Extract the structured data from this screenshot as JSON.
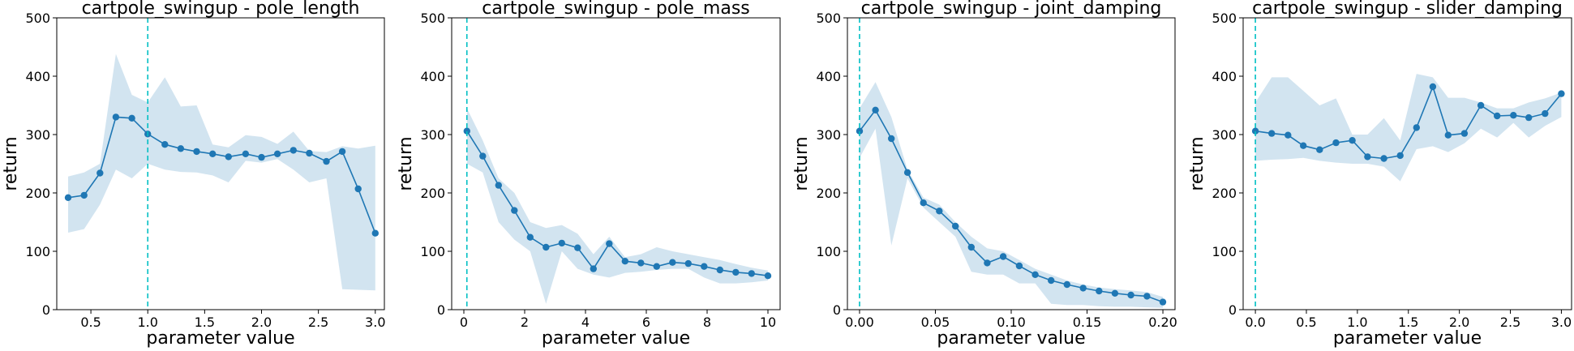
{
  "chart_data": [
    {
      "type": "line",
      "title": "cartpole_swingup - pole_length",
      "xlabel": "parameter value",
      "ylabel": "return",
      "xlim": [
        0.2,
        3.08
      ],
      "ylim": [
        0,
        500
      ],
      "xticks": [
        0.5,
        1.0,
        1.5,
        2.0,
        2.5,
        3.0
      ],
      "xtick_labels": [
        "0.5",
        "1.0",
        "1.5",
        "2.0",
        "2.5",
        "3.0"
      ],
      "yticks": [
        0,
        100,
        200,
        300,
        400,
        500
      ],
      "ytick_labels": [
        "0",
        "100",
        "200",
        "300",
        "400",
        "500"
      ],
      "vline": 1.0,
      "x": [
        0.3,
        0.44,
        0.58,
        0.72,
        0.86,
        1.0,
        1.15,
        1.29,
        1.43,
        1.57,
        1.71,
        1.86,
        2.0,
        2.14,
        2.28,
        2.42,
        2.57,
        2.71,
        2.85,
        3.0
      ],
      "y": [
        192,
        196,
        234,
        330,
        328,
        301,
        283,
        276,
        271,
        267,
        262,
        267,
        261,
        267,
        273,
        268,
        254,
        271,
        207,
        131
      ],
      "lower": [
        132,
        138,
        180,
        240,
        225,
        250,
        240,
        236,
        235,
        230,
        218,
        255,
        252,
        258,
        240,
        218,
        225,
        35,
        34,
        33
      ],
      "upper": [
        228,
        235,
        250,
        438,
        368,
        355,
        398,
        348,
        350,
        283,
        278,
        299,
        296,
        284,
        305,
        272,
        270,
        280,
        276,
        281
      ]
    },
    {
      "type": "line",
      "title": "cartpole_swingup - pole_mass",
      "xlabel": "parameter value",
      "ylabel": "return",
      "xlim": [
        -0.4,
        10.4
      ],
      "ylim": [
        0,
        500
      ],
      "xticks": [
        0,
        2,
        4,
        6,
        8,
        10
      ],
      "xtick_labels": [
        "0",
        "2",
        "4",
        "6",
        "8",
        "10"
      ],
      "yticks": [
        0,
        100,
        200,
        300,
        400,
        500
      ],
      "ytick_labels": [
        "0",
        "100",
        "200",
        "300",
        "400",
        "500"
      ],
      "vline": 0.1,
      "x": [
        0.1,
        0.62,
        1.14,
        1.66,
        2.18,
        2.7,
        3.22,
        3.74,
        4.26,
        4.78,
        5.3,
        5.82,
        6.34,
        6.86,
        7.38,
        7.9,
        8.42,
        8.94,
        9.46,
        10.0
      ],
      "y": [
        306,
        263,
        213,
        170,
        124,
        107,
        114,
        106,
        70,
        113,
        83,
        80,
        74,
        81,
        79,
        74,
        68,
        64,
        62,
        58
      ],
      "lower": [
        250,
        235,
        150,
        120,
        100,
        10,
        100,
        70,
        60,
        55,
        63,
        65,
        68,
        70,
        70,
        55,
        45,
        45,
        47,
        50
      ],
      "upper": [
        345,
        290,
        225,
        200,
        150,
        140,
        145,
        130,
        95,
        125,
        90,
        95,
        107,
        100,
        95,
        90,
        85,
        78,
        72,
        67
      ]
    },
    {
      "type": "line",
      "title": "cartpole_swingup - joint_damping",
      "xlabel": "parameter value",
      "ylabel": "return",
      "xlim": [
        -0.008,
        0.208
      ],
      "ylim": [
        0,
        500
      ],
      "xticks": [
        0.0,
        0.05,
        0.1,
        0.15,
        0.2
      ],
      "xtick_labels": [
        "0.00",
        "0.05",
        "0.10",
        "0.15",
        "0.20"
      ],
      "yticks": [
        0,
        100,
        200,
        300,
        400,
        500
      ],
      "ytick_labels": [
        "0",
        "100",
        "200",
        "300",
        "400",
        "500"
      ],
      "vline": 0.0,
      "x": [
        0.0,
        0.0105,
        0.021,
        0.0316,
        0.0421,
        0.0526,
        0.0632,
        0.0737,
        0.0842,
        0.0947,
        0.1053,
        0.1158,
        0.1263,
        0.1368,
        0.1474,
        0.1579,
        0.1684,
        0.1789,
        0.1895,
        0.2
      ],
      "y": [
        306,
        342,
        293,
        235,
        183,
        169,
        143,
        107,
        80,
        91,
        75,
        60,
        50,
        43,
        37,
        32,
        28,
        25,
        23,
        13
      ],
      "lower": [
        260,
        310,
        110,
        225,
        175,
        150,
        125,
        65,
        60,
        60,
        45,
        45,
        10,
        8,
        8,
        6,
        5,
        5,
        4,
        3
      ],
      "upper": [
        345,
        390,
        330,
        240,
        192,
        180,
        150,
        125,
        105,
        100,
        85,
        70,
        60,
        50,
        43,
        38,
        35,
        33,
        30,
        22
      ]
    },
    {
      "type": "line",
      "title": "cartpole_swingup - slider_damping",
      "xlabel": "parameter value",
      "ylabel": "return",
      "xlim": [
        -0.12,
        3.1
      ],
      "ylim": [
        0,
        500
      ],
      "xticks": [
        0.0,
        0.5,
        1.0,
        1.5,
        2.0,
        2.5,
        3.0
      ],
      "xtick_labels": [
        "0.0",
        "0.5",
        "1.0",
        "1.5",
        "2.0",
        "2.5",
        "3.0"
      ],
      "yticks": [
        0,
        100,
        200,
        300,
        400,
        500
      ],
      "ytick_labels": [
        "0",
        "100",
        "200",
        "300",
        "400",
        "500"
      ],
      "vline": 0.0,
      "x": [
        0.0,
        0.16,
        0.32,
        0.47,
        0.63,
        0.79,
        0.95,
        1.1,
        1.26,
        1.42,
        1.58,
        1.74,
        1.89,
        2.05,
        2.21,
        2.37,
        2.53,
        2.68,
        2.84,
        3.0
      ],
      "y": [
        306,
        302,
        299,
        281,
        274,
        286,
        290,
        262,
        259,
        264,
        312,
        382,
        299,
        302,
        350,
        332,
        333,
        329,
        336,
        370
      ],
      "lower": [
        255,
        257,
        258,
        260,
        255,
        252,
        250,
        250,
        245,
        220,
        275,
        280,
        270,
        285,
        310,
        295,
        320,
        295,
        315,
        330
      ],
      "upper": [
        355,
        398,
        398,
        375,
        350,
        362,
        300,
        300,
        328,
        290,
        404,
        398,
        363,
        363,
        355,
        345,
        345,
        355,
        362,
        372
      ]
    }
  ],
  "colors": {
    "line": "#1f77b4",
    "band": "#1f77b4",
    "vline": "#00bfc4",
    "axes": "#000000"
  }
}
